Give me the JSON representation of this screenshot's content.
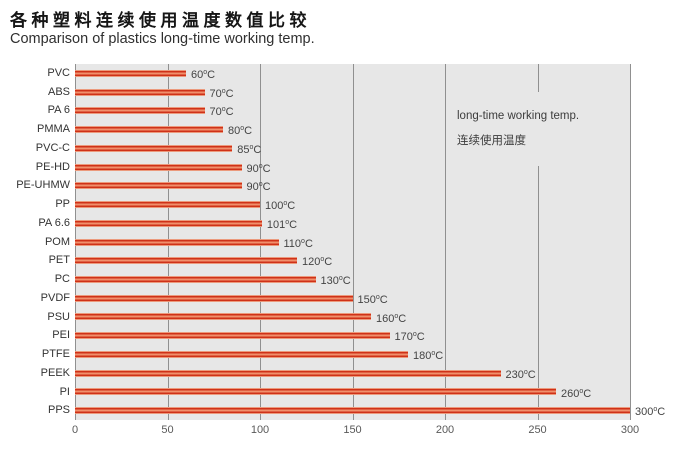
{
  "header": {
    "title_zh": "各种塑料连续使用温度数值比较",
    "title_en": "Comparison of plastics long-time working temp."
  },
  "legend": {
    "line1": "long-time working temp.",
    "line2": "连续使用温度"
  },
  "chart_data": {
    "type": "bar",
    "orientation": "horizontal",
    "title": "各种塑料连续使用温度数值比较",
    "subtitle": "Comparison of plastics long-time working temp.",
    "categories": [
      "PVC",
      "ABS",
      "PA 6",
      "PMMA",
      "PVC-C",
      "PE-HD",
      "PE-UHMW",
      "PP",
      "PA 6.6",
      "POM",
      "PET",
      "PC",
      "PVDF",
      "PSU",
      "PEI",
      "PTFE",
      "PEEK",
      "PI",
      "PPS"
    ],
    "values": [
      60,
      70,
      70,
      80,
      85,
      90,
      90,
      100,
      101,
      110,
      120,
      130,
      150,
      160,
      170,
      180,
      230,
      260,
      300
    ],
    "unit": "°C",
    "value_labels": [
      "60°C",
      "70°C",
      "70°C",
      "80°C",
      "85°C",
      "90°C",
      "90°C",
      "100°C",
      "101°C",
      "110°C",
      "120°C",
      "130°C",
      "150°C",
      "160°C",
      "170°C",
      "180°C",
      "230°C",
      "260°C",
      "300°C"
    ],
    "xlabel": "",
    "ylabel": "",
    "xlim": [
      0,
      300
    ],
    "x_ticks": [
      0,
      50,
      100,
      150,
      200,
      250,
      300
    ],
    "grid": true,
    "legend_position": "inside-top-right",
    "colors": {
      "bar_dark": "#cf3118",
      "bar_mid": "#f0906c",
      "bar_edge": "#eb9a7d",
      "plot_bg": "#e7e7e7",
      "gridline": "#909090",
      "category_text": "#333333",
      "value_text": "#444444",
      "tick_text": "#595959"
    }
  }
}
